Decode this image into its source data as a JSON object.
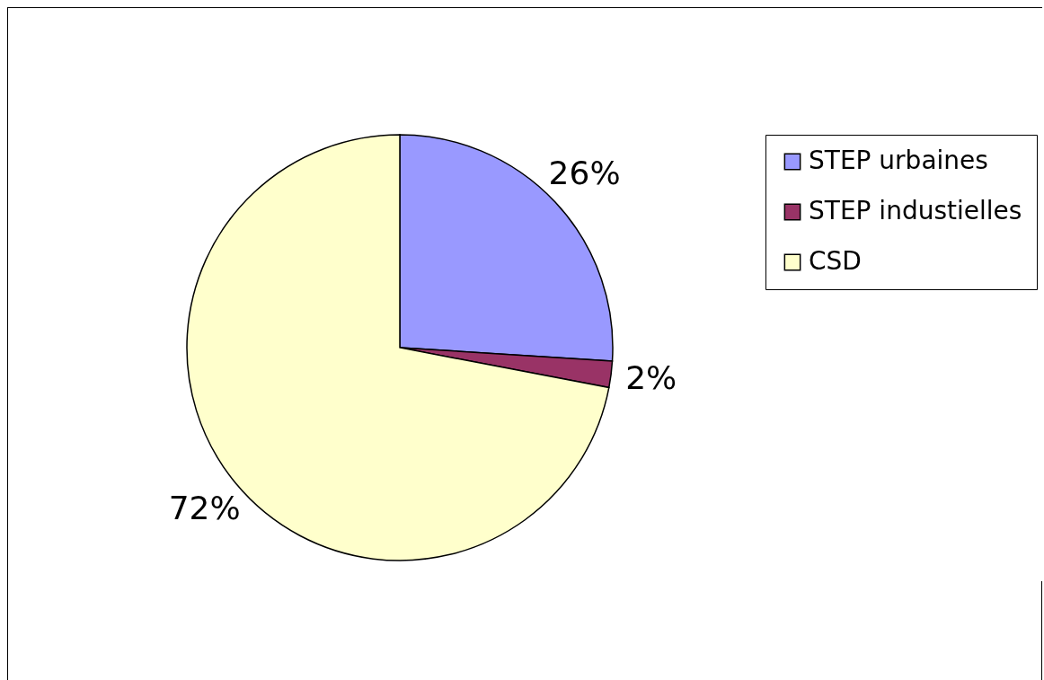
{
  "chart_data": {
    "type": "pie",
    "categories": [
      "STEP urbaines",
      "STEP industielles",
      "CSD"
    ],
    "values": [
      26,
      2,
      72
    ],
    "colors": [
      "#9999ff",
      "#993366",
      "#ffffcc"
    ],
    "value_labels": [
      "26%",
      "2%",
      "72%"
    ],
    "legend": "right"
  }
}
